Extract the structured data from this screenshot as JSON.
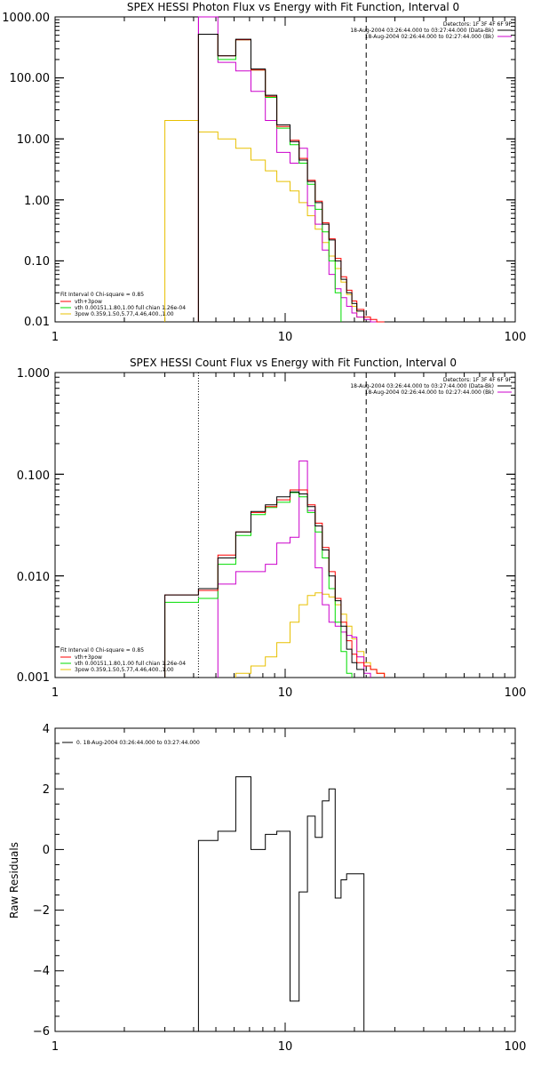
{
  "chart_data": [
    {
      "type": "line",
      "title": "SPEX HESSI Photon Flux vs Energy with Fit Function, Interval 0",
      "xscale": "log",
      "yscale": "log",
      "xlim": [
        1,
        100
      ],
      "ylim": [
        0.01,
        1000
      ],
      "xticks": [
        "1",
        "10",
        "100"
      ],
      "yticks": [
        "1000.00",
        "100.00",
        "10.00",
        "1.00",
        "0.10",
        "0.01"
      ],
      "ylabel": "",
      "annotations": [
        "Detectors: 1F 3F 4F 6F 9F",
        "18-Aug-2004 03:26:44.000 to 03:27:44.000 (Data-Bk)",
        "18-Aug-2004 02:26:44.000 to 02:27:44.000 (Bk)"
      ],
      "legend": {
        "header": "Fit Interval  0   Chi-square = 0.85",
        "items": [
          "vth+3pow",
          "vth 0.00151,1.80,1.00  full chian 1.26e-04",
          "3pow 0.359,1.50,5.77,4.46,400.,1.00"
        ]
      },
      "vlines": [
        {
          "x": 4.2,
          "color": "#cc00cc",
          "style": "solid"
        },
        {
          "x": 22.5,
          "color": "#000000",
          "style": "dashed"
        }
      ],
      "bin_edges": [
        3,
        4.2,
        5.1,
        6.1,
        7.1,
        8.2,
        9.2,
        10.5,
        11.5,
        12.5,
        13.5,
        14.5,
        15.5,
        16.5,
        17.5,
        18.5,
        19.5,
        20.5,
        22,
        23.5,
        25,
        27,
        29
      ],
      "series": [
        {
          "name": "data",
          "color": "#000000",
          "values": [
            null,
            520,
            230,
            430,
            140,
            52,
            17,
            9,
            4.5,
            2,
            0.9,
            0.4,
            0.22,
            0.1,
            0.05,
            0.03,
            0.02,
            0.015,
            null,
            null,
            null,
            null
          ]
        },
        {
          "name": "vth+3pow",
          "color": "#ff0000",
          "values": [
            null,
            520,
            230,
            420,
            135,
            50,
            16,
            9.5,
            4.8,
            2.1,
            0.95,
            0.42,
            0.23,
            0.11,
            0.055,
            0.033,
            0.022,
            0.016,
            0.012,
            0.011,
            0.01,
            null
          ]
        },
        {
          "name": "vth",
          "color": "#00dd00",
          "values": [
            null,
            520,
            200,
            420,
            135,
            48,
            15,
            8,
            4,
            1.8,
            0.7,
            0.3,
            0.1,
            0.03,
            null,
            null,
            null,
            null,
            null,
            null,
            null,
            null
          ]
        },
        {
          "name": "bk",
          "color": "#cc00cc",
          "values": [
            null,
            1000,
            180,
            130,
            60,
            20,
            6,
            4,
            7,
            0.8,
            0.4,
            0.15,
            0.06,
            0.035,
            0.025,
            0.018,
            0.014,
            0.012,
            0.011,
            0.01,
            null,
            null
          ]
        },
        {
          "name": "3pow",
          "color": "#e8c000",
          "values": [
            20,
            13,
            10,
            7,
            4.5,
            3,
            2,
            1.4,
            0.9,
            0.55,
            0.33,
            0.2,
            0.12,
            0.075,
            0.045,
            0.028,
            0.018,
            0.012,
            null,
            null,
            null,
            null
          ]
        }
      ]
    },
    {
      "type": "line",
      "title": "SPEX HESSI Count Flux vs Energy with Fit Function, Interval 0",
      "xscale": "log",
      "yscale": "log",
      "xlim": [
        1,
        100
      ],
      "ylim": [
        0.001,
        1
      ],
      "xticks": [
        "1",
        "10",
        "100"
      ],
      "yticks": [
        "1.000",
        "0.100",
        "0.010",
        "0.001"
      ],
      "annotations": [
        "Detectors: 1F 3F 4F 6F 9F",
        "18-Aug-2004 03:26:44.000 to 03:27:44.000 (Data-Bk)",
        "18-Aug-2004 02:26:44.000 to 02:27:44.000 (Bk)"
      ],
      "legend": {
        "header": "Fit Interval  0   Chi-square = 0.85",
        "items": [
          "vth+3pow",
          "vth 0.00151,1.80,1.00  full chian 1.26e-04",
          "3pow 0.359,1.50,5.77,4.46,400.,1.00"
        ]
      },
      "vlines": [
        {
          "x": 4.2,
          "color": "#000000",
          "style": "dotted"
        },
        {
          "x": 22.5,
          "color": "#000000",
          "style": "dashed"
        }
      ],
      "bin_edges": [
        3,
        4.2,
        5.1,
        6.1,
        7.1,
        8.2,
        9.2,
        10.5,
        11.5,
        12.5,
        13.5,
        14.5,
        15.5,
        16.5,
        17.5,
        18.5,
        19.5,
        20.5,
        22,
        23.5,
        25,
        27,
        29
      ],
      "series": [
        {
          "name": "data",
          "color": "#000000",
          "values": [
            0.0065,
            0.0075,
            0.015,
            0.027,
            0.043,
            0.05,
            0.06,
            0.067,
            0.064,
            0.048,
            0.031,
            0.018,
            0.01,
            0.0057,
            0.0032,
            0.0019,
            0.0014,
            0.0012,
            null,
            null,
            null,
            null
          ]
        },
        {
          "name": "vth+3pow",
          "color": "#ff0000",
          "values": [
            0.0065,
            0.0072,
            0.016,
            0.027,
            0.042,
            0.048,
            0.056,
            0.07,
            0.07,
            0.05,
            0.033,
            0.019,
            0.011,
            0.006,
            0.0035,
            0.0023,
            0.0017,
            0.0014,
            0.0013,
            0.0012,
            0.0011,
            null
          ]
        },
        {
          "name": "vth",
          "color": "#00dd00",
          "values": [
            0.0055,
            0.006,
            0.013,
            0.025,
            0.04,
            0.047,
            0.053,
            0.066,
            0.06,
            0.042,
            0.027,
            0.015,
            0.0075,
            0.0035,
            0.0018,
            0.0011,
            null,
            null,
            null,
            null,
            null,
            null
          ]
        },
        {
          "name": "bk",
          "color": "#cc00cc",
          "values": [
            null,
            null,
            0.0083,
            0.011,
            0.011,
            0.013,
            0.021,
            0.024,
            0.135,
            0.044,
            0.012,
            0.0052,
            0.0035,
            0.0032,
            0.0028,
            0.0026,
            0.0025,
            0.0016,
            0.0011,
            null,
            null,
            null
          ]
        },
        {
          "name": "3pow",
          "color": "#e8c000",
          "values": [
            null,
            null,
            null,
            0.0011,
            0.0013,
            0.0016,
            0.0022,
            0.0035,
            0.0052,
            0.0064,
            0.0068,
            0.0066,
            0.0062,
            0.0052,
            0.0042,
            0.0032,
            0.0024,
            0.0018,
            0.0014,
            0.0012,
            0.0011,
            null
          ]
        }
      ]
    },
    {
      "type": "line",
      "title": "",
      "xscale": "log",
      "xlim": [
        1,
        100
      ],
      "ylim": [
        -6,
        4
      ],
      "xticks": [
        "1",
        "10",
        "100"
      ],
      "yticks": [
        "4",
        "2",
        "0",
        "−2",
        "−4",
        "−6"
      ],
      "ylabel": "Raw Residuals",
      "legend": {
        "items": [
          "0. 18-Aug-2004 03:26:44.000 to 03:27:44.000"
        ]
      },
      "bin_edges": [
        4.2,
        5.1,
        6.1,
        7.1,
        8.2,
        9.2,
        10.5,
        11.5,
        12.5,
        13.5,
        14.5,
        15.5,
        16.5,
        17.5,
        18.5,
        19.5,
        20.5,
        22
      ],
      "series": [
        {
          "name": "residuals",
          "color": "#000000",
          "values": [
            0.3,
            0.6,
            2.4,
            0,
            0.5,
            0.6,
            -5,
            -1.4,
            1.1,
            0.4,
            1.6,
            2,
            -1.6,
            -1.0,
            -0.8,
            -0.8,
            -0.8
          ]
        }
      ]
    }
  ]
}
